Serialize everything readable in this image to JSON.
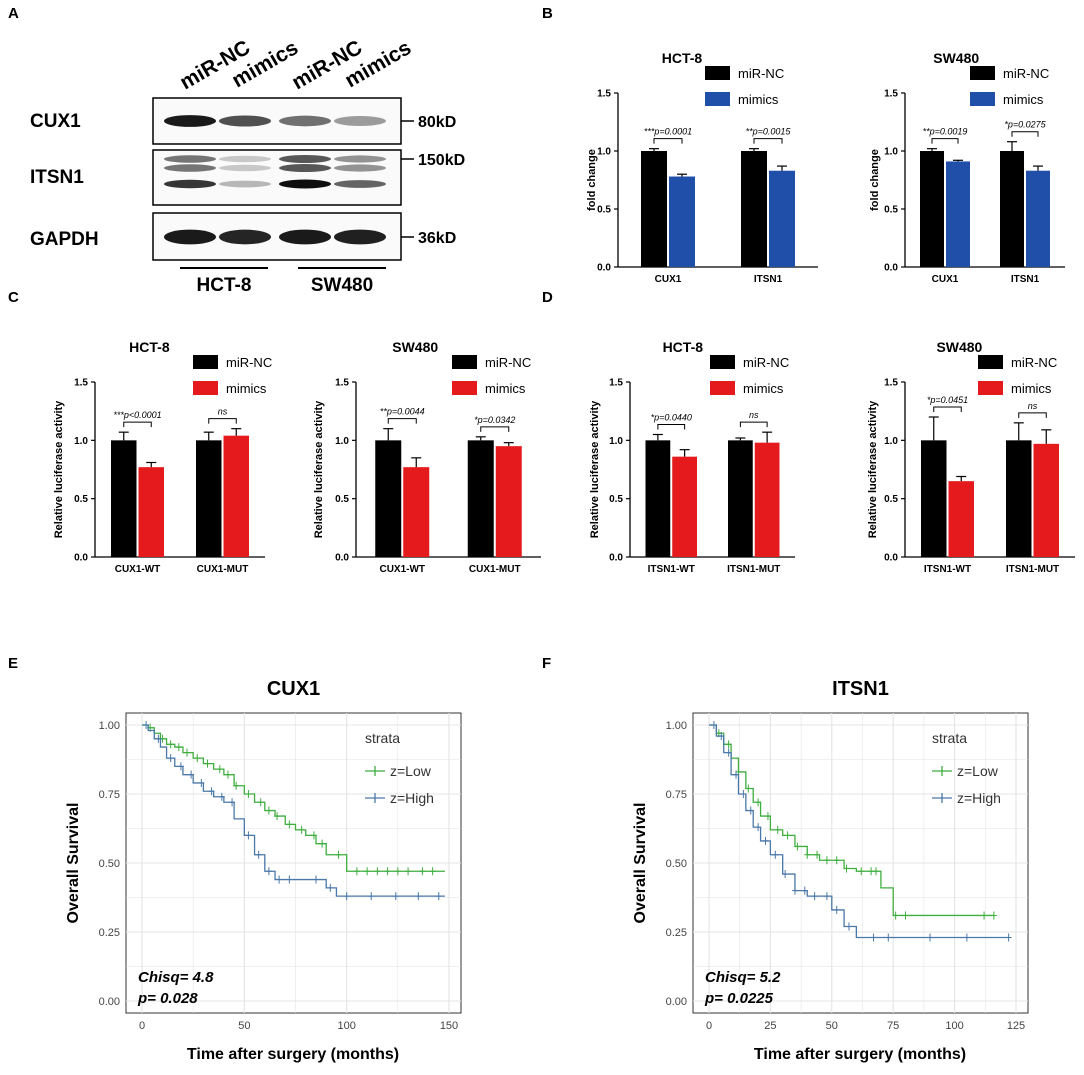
{
  "panel_labels": {
    "A": "A",
    "B": "B",
    "C": "C",
    "D": "D",
    "E": "E",
    "F": "F"
  },
  "western_blot": {
    "lanes": [
      "miR-NC",
      "mimics",
      "miR-NC",
      "mimics"
    ],
    "proteins": [
      "CUX1",
      "ITSN1",
      "GAPDH"
    ],
    "sizes": [
      "80kD",
      "150kD",
      "36kD"
    ],
    "cell_lines": [
      "HCT-8",
      "SW480"
    ],
    "band_intensity": {
      "CUX1": [
        0.95,
        0.7,
        0.55,
        0.35
      ],
      "ITSN1": [
        0.75,
        0.2,
        0.95,
        0.55
      ],
      "GAPDH": [
        0.95,
        0.9,
        0.95,
        0.92
      ]
    }
  },
  "colors": {
    "control": "#000000",
    "mimics_blue": "#1f4fa8",
    "mimics_red": "#e41a1c",
    "km_low": "#3fae3f",
    "km_high": "#4a78a8",
    "km_grid": "#e4e4e4"
  },
  "chart_data": [
    {
      "id": "B1",
      "type": "bar",
      "title": "HCT-8",
      "ylabel": "fold change",
      "ylim": [
        0,
        1.5
      ],
      "yticks": [
        "0.0",
        "0.5",
        "1.0",
        "1.5"
      ],
      "categories": [
        "CUX1",
        "ITSN1"
      ],
      "series": [
        {
          "name": "miR-NC",
          "values": [
            1.0,
            1.0
          ],
          "errors": [
            0.02,
            0.02
          ]
        },
        {
          "name": "mimics",
          "values": [
            0.78,
            0.83
          ],
          "errors": [
            0.02,
            0.04
          ]
        }
      ],
      "annotations": [
        "***p=0.0001",
        "**p=0.0015"
      ]
    },
    {
      "id": "B2",
      "type": "bar",
      "title": "SW480",
      "ylabel": "fold change",
      "ylim": [
        0,
        1.5
      ],
      "yticks": [
        "0.0",
        "0.5",
        "1.0",
        "1.5"
      ],
      "categories": [
        "CUX1",
        "ITSN1"
      ],
      "series": [
        {
          "name": "miR-NC",
          "values": [
            1.0,
            1.0
          ],
          "errors": [
            0.02,
            0.08
          ]
        },
        {
          "name": "mimics",
          "values": [
            0.91,
            0.83
          ],
          "errors": [
            0.01,
            0.04
          ]
        }
      ],
      "annotations": [
        "**p=0.0019",
        "*p=0.0275"
      ]
    },
    {
      "id": "C1",
      "type": "bar",
      "title": "HCT-8",
      "ylabel": "Relative luciferase activity",
      "ylim": [
        0,
        1.5
      ],
      "yticks": [
        "0.0",
        "0.5",
        "1.0",
        "1.5"
      ],
      "categories": [
        "CUX1-WT",
        "CUX1-MUT"
      ],
      "series": [
        {
          "name": "miR-NC",
          "values": [
            1.0,
            1.0
          ],
          "errors": [
            0.07,
            0.07
          ]
        },
        {
          "name": "mimics",
          "values": [
            0.77,
            1.04
          ],
          "errors": [
            0.04,
            0.06
          ]
        }
      ],
      "annotations": [
        "***p<0.0001",
        "ns"
      ]
    },
    {
      "id": "C2",
      "type": "bar",
      "title": "SW480",
      "ylabel": "Relative luciferase activity",
      "ylim": [
        0,
        1.5
      ],
      "yticks": [
        "0.0",
        "0.5",
        "1.0",
        "1.5"
      ],
      "categories": [
        "CUX1-WT",
        "CUX1-MUT"
      ],
      "series": [
        {
          "name": "miR-NC",
          "values": [
            1.0,
            1.0
          ],
          "errors": [
            0.1,
            0.03
          ]
        },
        {
          "name": "mimics",
          "values": [
            0.77,
            0.95
          ],
          "errors": [
            0.08,
            0.03
          ]
        }
      ],
      "annotations": [
        "**p=0.0044",
        "*p=0.0342"
      ]
    },
    {
      "id": "D1",
      "type": "bar",
      "title": "HCT-8",
      "ylabel": "Relative luciferase activity",
      "ylim": [
        0,
        1.5
      ],
      "yticks": [
        "0.0",
        "0.5",
        "1.0",
        "1.5"
      ],
      "categories": [
        "ITSN1-WT",
        "ITSN1-MUT"
      ],
      "series": [
        {
          "name": "miR-NC",
          "values": [
            1.0,
            1.0
          ],
          "errors": [
            0.05,
            0.02
          ]
        },
        {
          "name": "mimics",
          "values": [
            0.86,
            0.98
          ],
          "errors": [
            0.06,
            0.09
          ]
        }
      ],
      "annotations": [
        "*p=0.0440",
        "ns"
      ]
    },
    {
      "id": "D2",
      "type": "bar",
      "title": "SW480",
      "ylabel": "Relative luciferase activity",
      "ylim": [
        0,
        1.5
      ],
      "yticks": [
        "0.0",
        "0.5",
        "1.0",
        "1.5"
      ],
      "categories": [
        "ITSN1-WT",
        "ITSN1-MUT"
      ],
      "series": [
        {
          "name": "miR-NC",
          "values": [
            1.0,
            1.0
          ],
          "errors": [
            0.2,
            0.15
          ]
        },
        {
          "name": "mimics",
          "values": [
            0.65,
            0.97
          ],
          "errors": [
            0.04,
            0.12
          ]
        }
      ],
      "annotations": [
        "*p=0.0451",
        "ns"
      ]
    },
    {
      "id": "E",
      "type": "line",
      "subtype": "kaplan-meier",
      "title": "CUX1",
      "xlabel": "Time after surgery (months)",
      "ylabel": "Overall Survival",
      "xlim": [
        0,
        150
      ],
      "ylim": [
        0,
        1.0
      ],
      "xticks": [
        "0",
        "50",
        "100",
        "150"
      ],
      "yticks": [
        "0.00",
        "0.25",
        "0.50",
        "0.75",
        "1.00"
      ],
      "legend_title": "strata",
      "series": [
        {
          "name": "z=Low",
          "x": [
            0,
            3,
            6,
            9,
            12,
            16,
            20,
            25,
            30,
            35,
            40,
            45,
            50,
            55,
            60,
            65,
            70,
            75,
            80,
            85,
            90,
            95,
            100,
            148
          ],
          "y": [
            1.0,
            0.99,
            0.97,
            0.95,
            0.93,
            0.92,
            0.9,
            0.88,
            0.86,
            0.84,
            0.82,
            0.78,
            0.75,
            0.72,
            0.69,
            0.67,
            0.64,
            0.62,
            0.6,
            0.57,
            0.53,
            0.53,
            0.47,
            0.47
          ],
          "censor_x": [
            4,
            10,
            14,
            18,
            22,
            27,
            32,
            38,
            42,
            46,
            52,
            58,
            62,
            66,
            72,
            78,
            84,
            88,
            96,
            105,
            110,
            115,
            120,
            125,
            130,
            137,
            142
          ]
        },
        {
          "name": "z=High",
          "x": [
            0,
            3,
            6,
            9,
            12,
            16,
            20,
            25,
            30,
            35,
            40,
            45,
            50,
            55,
            60,
            65,
            70,
            75,
            80,
            85,
            90,
            95,
            148
          ],
          "y": [
            1.0,
            0.98,
            0.95,
            0.92,
            0.88,
            0.85,
            0.82,
            0.79,
            0.76,
            0.74,
            0.72,
            0.66,
            0.6,
            0.53,
            0.47,
            0.44,
            0.44,
            0.44,
            0.44,
            0.44,
            0.41,
            0.38,
            0.38
          ],
          "censor_x": [
            2,
            8,
            14,
            19,
            24,
            29,
            34,
            39,
            44,
            52,
            57,
            62,
            67,
            72,
            85,
            92,
            100,
            112,
            124,
            135,
            145
          ]
        }
      ],
      "stats": [
        "Chisq= 4.8",
        "p= 0.028"
      ]
    },
    {
      "id": "F",
      "type": "line",
      "subtype": "kaplan-meier",
      "title": "ITSN1",
      "xlabel": "Time after surgery (months)",
      "ylabel": "Overall Survival",
      "xlim": [
        0,
        125
      ],
      "ylim": [
        0,
        1.0
      ],
      "xticks": [
        "0",
        "25",
        "50",
        "75",
        "100",
        "125"
      ],
      "yticks": [
        "0.00",
        "0.25",
        "0.50",
        "0.75",
        "1.00"
      ],
      "legend_title": "strata",
      "series": [
        {
          "name": "z=Low",
          "x": [
            0,
            3,
            6,
            9,
            12,
            15,
            18,
            21,
            25,
            30,
            35,
            40,
            45,
            50,
            55,
            60,
            65,
            70,
            75,
            116
          ],
          "y": [
            1.0,
            0.97,
            0.93,
            0.88,
            0.83,
            0.77,
            0.72,
            0.67,
            0.62,
            0.6,
            0.56,
            0.53,
            0.51,
            0.51,
            0.48,
            0.47,
            0.47,
            0.41,
            0.31,
            0.31
          ],
          "censor_x": [
            4,
            8,
            12,
            16,
            20,
            24,
            28,
            32,
            36,
            40,
            44,
            48,
            52,
            56,
            62,
            66,
            68,
            76,
            80,
            112,
            116
          ]
        },
        {
          "name": "z=High",
          "x": [
            0,
            3,
            6,
            9,
            12,
            15,
            18,
            21,
            25,
            30,
            35,
            40,
            45,
            50,
            55,
            60,
            65,
            70,
            122
          ],
          "y": [
            1.0,
            0.96,
            0.9,
            0.82,
            0.75,
            0.69,
            0.63,
            0.58,
            0.53,
            0.46,
            0.4,
            0.38,
            0.38,
            0.33,
            0.27,
            0.23,
            0.23,
            0.23,
            0.23
          ],
          "censor_x": [
            2,
            5,
            8,
            11,
            14,
            17,
            20,
            23,
            27,
            31,
            35,
            39,
            43,
            48,
            52,
            57,
            67,
            73,
            90,
            105,
            122
          ]
        }
      ],
      "stats": [
        "Chisq= 5.2",
        "p= 0.0225"
      ]
    }
  ]
}
